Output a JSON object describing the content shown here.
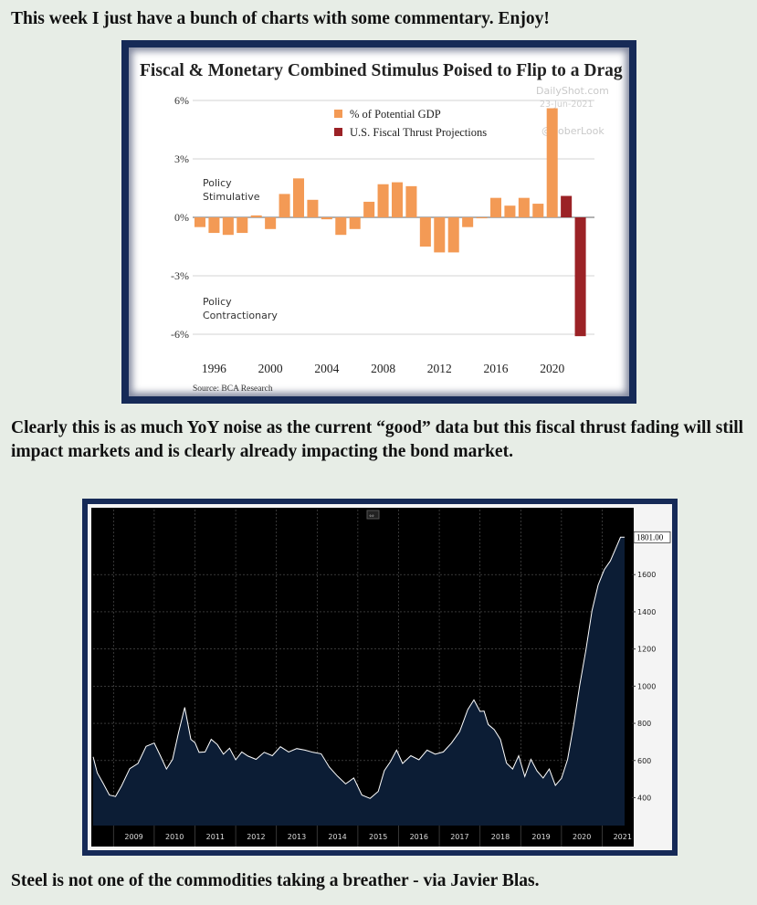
{
  "text": {
    "intro": "This week I just have a bunch of charts with some commentary. Enjoy!",
    "commentary": "Clearly this is as much YoY noise as the current “good” data but this fiscal thrust fading will still impact markets and is clearly already impacting the bond market.",
    "steel_caption": "Steel is not one of the commodities taking a breather - via Javier Blas."
  },
  "colors": {
    "page_bg": "#e7ede6",
    "frame": "#162a57",
    "gdp_bar": "#f39a55",
    "projection_bar": "#9b2226",
    "steel_bg": "#000000",
    "steel_fill": "#0c1d35"
  },
  "chart_data": [
    {
      "type": "bar",
      "title": "Fiscal & Monetary Combined Stimulus Poised to Flip to a Drag",
      "source": "Source:  BCA Research",
      "watermark_site": "DailyShot.com",
      "watermark_date": "23-Jun-2021",
      "watermark_handle": "@SoberLook",
      "annotation_top": [
        "Policy",
        "Stimulative"
      ],
      "annotation_bottom": [
        "Policy",
        "Contractionary"
      ],
      "ylim": [
        -6,
        6
      ],
      "yticks": [
        6,
        3,
        0,
        -3,
        -6
      ],
      "ytick_labels": [
        "6%",
        "3%",
        "0%",
        "-3%",
        "-6%"
      ],
      "xtick_labels": [
        "1996",
        "2000",
        "2004",
        "2008",
        "2012",
        "2016",
        "2020"
      ],
      "xtick_years": [
        1996,
        2000,
        2004,
        2008,
        2012,
        2016,
        2020
      ],
      "series": [
        {
          "name": "% of Potential GDP",
          "color": "#f39a55",
          "x": [
            1995,
            1996,
            1997,
            1998,
            1999,
            2000,
            2001,
            2002,
            2003,
            2004,
            2005,
            2006,
            2007,
            2008,
            2009,
            2010,
            2011,
            2012,
            2013,
            2014,
            2015,
            2016,
            2017,
            2018,
            2019,
            2020
          ],
          "values": [
            -0.5,
            -0.8,
            -0.9,
            -0.8,
            0.1,
            -0.6,
            1.2,
            2.0,
            0.9,
            -0.1,
            -0.9,
            -0.6,
            0.8,
            1.7,
            1.8,
            1.6,
            -1.5,
            -1.8,
            -1.8,
            -0.5,
            -0.05,
            1.0,
            0.6,
            1.0,
            0.7,
            5.6
          ]
        },
        {
          "name": "U.S. Fiscal Thrust Projections",
          "color": "#9b2226",
          "x": [
            2021,
            2022
          ],
          "values": [
            1.1,
            -6.1
          ]
        }
      ]
    },
    {
      "type": "area",
      "title": "",
      "last_value_label": "1801.00",
      "ylim": [
        250,
        1950
      ],
      "yticks": [
        400,
        600,
        800,
        1000,
        1200,
        1400,
        1600
      ],
      "ytick_labels": [
        "400",
        "600",
        "800",
        "1000",
        "1200",
        "1400",
        "1600"
      ],
      "xtick_labels": [
        "2009",
        "2010",
        "2011",
        "2012",
        "2013",
        "2014",
        "2015",
        "2016",
        "2017",
        "2018",
        "2019",
        "2020",
        "2021"
      ],
      "xlim": [
        2008.5,
        2021.55
      ],
      "series": [
        {
          "name": "",
          "x": [
            2008.5,
            2008.6,
            2008.75,
            2008.9,
            2009.05,
            2009.2,
            2009.4,
            2009.6,
            2009.8,
            2010.0,
            2010.15,
            2010.3,
            2010.45,
            2010.6,
            2010.75,
            2010.9,
            2011.0,
            2011.1,
            2011.25,
            2011.4,
            2011.55,
            2011.7,
            2011.85,
            2012.0,
            2012.15,
            2012.3,
            2012.5,
            2012.7,
            2012.9,
            2013.1,
            2013.3,
            2013.5,
            2013.7,
            2013.9,
            2014.1,
            2014.3,
            2014.5,
            2014.7,
            2014.9,
            2015.1,
            2015.3,
            2015.5,
            2015.65,
            2015.8,
            2015.95,
            2016.1,
            2016.3,
            2016.5,
            2016.7,
            2016.9,
            2017.1,
            2017.3,
            2017.5,
            2017.7,
            2017.85,
            2018.0,
            2018.1,
            2018.2,
            2018.35,
            2018.5,
            2018.65,
            2018.8,
            2018.95,
            2019.1,
            2019.25,
            2019.4,
            2019.55,
            2019.7,
            2019.85,
            2020.0,
            2020.15,
            2020.3,
            2020.45,
            2020.6,
            2020.75,
            2020.9,
            2021.05,
            2021.2,
            2021.35,
            2021.45,
            2021.55
          ],
          "values": [
            620,
            540,
            470,
            420,
            400,
            470,
            550,
            590,
            670,
            700,
            620,
            560,
            600,
            760,
            880,
            720,
            690,
            650,
            640,
            720,
            680,
            640,
            660,
            610,
            640,
            630,
            600,
            650,
            620,
            680,
            640,
            670,
            650,
            650,
            630,
            570,
            510,
            480,
            500,
            420,
            390,
            440,
            540,
            600,
            650,
            590,
            620,
            610,
            650,
            640,
            640,
            700,
            750,
            880,
            920,
            870,
            860,
            800,
            760,
            720,
            580,
            560,
            620,
            520,
            600,
            550,
            500,
            560,
            460,
            510,
            600,
            800,
            1000,
            1200,
            1400,
            1550,
            1620,
            1680,
            1750,
            1801,
            1801
          ]
        }
      ]
    }
  ]
}
